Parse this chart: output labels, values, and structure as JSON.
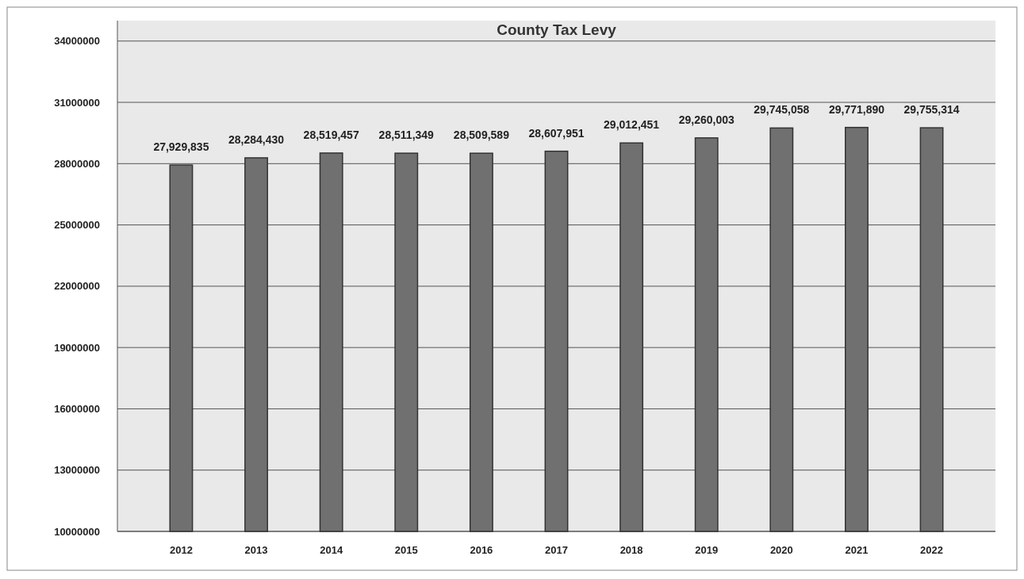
{
  "chart_data": {
    "type": "bar",
    "title": "County Tax Levy",
    "categories": [
      "2012",
      "2013",
      "2014",
      "2015",
      "2016",
      "2017",
      "2018",
      "2019",
      "2020",
      "2021",
      "2022"
    ],
    "values": [
      27929835,
      28284430,
      28519457,
      28511349,
      28509589,
      28607951,
      29012451,
      29260003,
      29745058,
      29771890,
      29755314
    ],
    "value_labels": [
      "27,929,835",
      "28,284,430",
      "28,519,457",
      "28,511,349",
      "28,509,589",
      "28,607,951",
      "29,012,451",
      "29,260,003",
      "29,745,058",
      "29,771,890",
      "29,755,314"
    ],
    "color": "#707070",
    "ylim": [
      10000000,
      35000000
    ],
    "yticks": [
      10000000,
      13000000,
      16000000,
      19000000,
      22000000,
      25000000,
      28000000,
      31000000,
      34000000
    ],
    "grid": "y"
  }
}
